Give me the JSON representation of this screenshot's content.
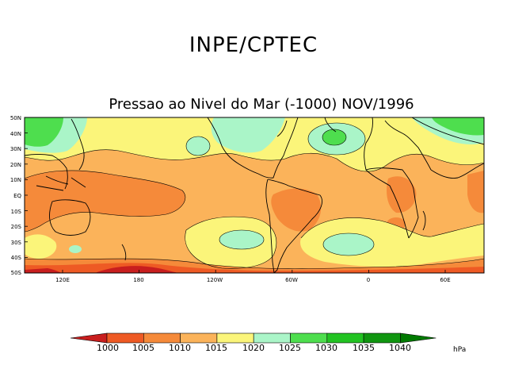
{
  "header": {
    "organization": "INPE/CPTEC",
    "map_title": "Pressao ao Nivel do Mar (-1000) NOV/1996"
  },
  "axes": {
    "lat_labels": [
      "50N",
      "40N",
      "30N",
      "20N",
      "10N",
      "EQ",
      "10S",
      "20S",
      "30S",
      "40S",
      "50S"
    ],
    "lon_labels": [
      "120E",
      "180",
      "120W",
      "60W",
      "0",
      "60E"
    ]
  },
  "colorbar": {
    "levels": [
      "1000",
      "1005",
      "1010",
      "1015",
      "1020",
      "1025",
      "1030",
      "1035",
      "1040"
    ],
    "units": "hPa",
    "colors": [
      "#c81e1e",
      "#ee5a24",
      "#f58a3a",
      "#fbb35a",
      "#fbf57a",
      "#aaf5c8",
      "#4ede4e",
      "#22c322",
      "#109610",
      "#007a00"
    ]
  }
}
